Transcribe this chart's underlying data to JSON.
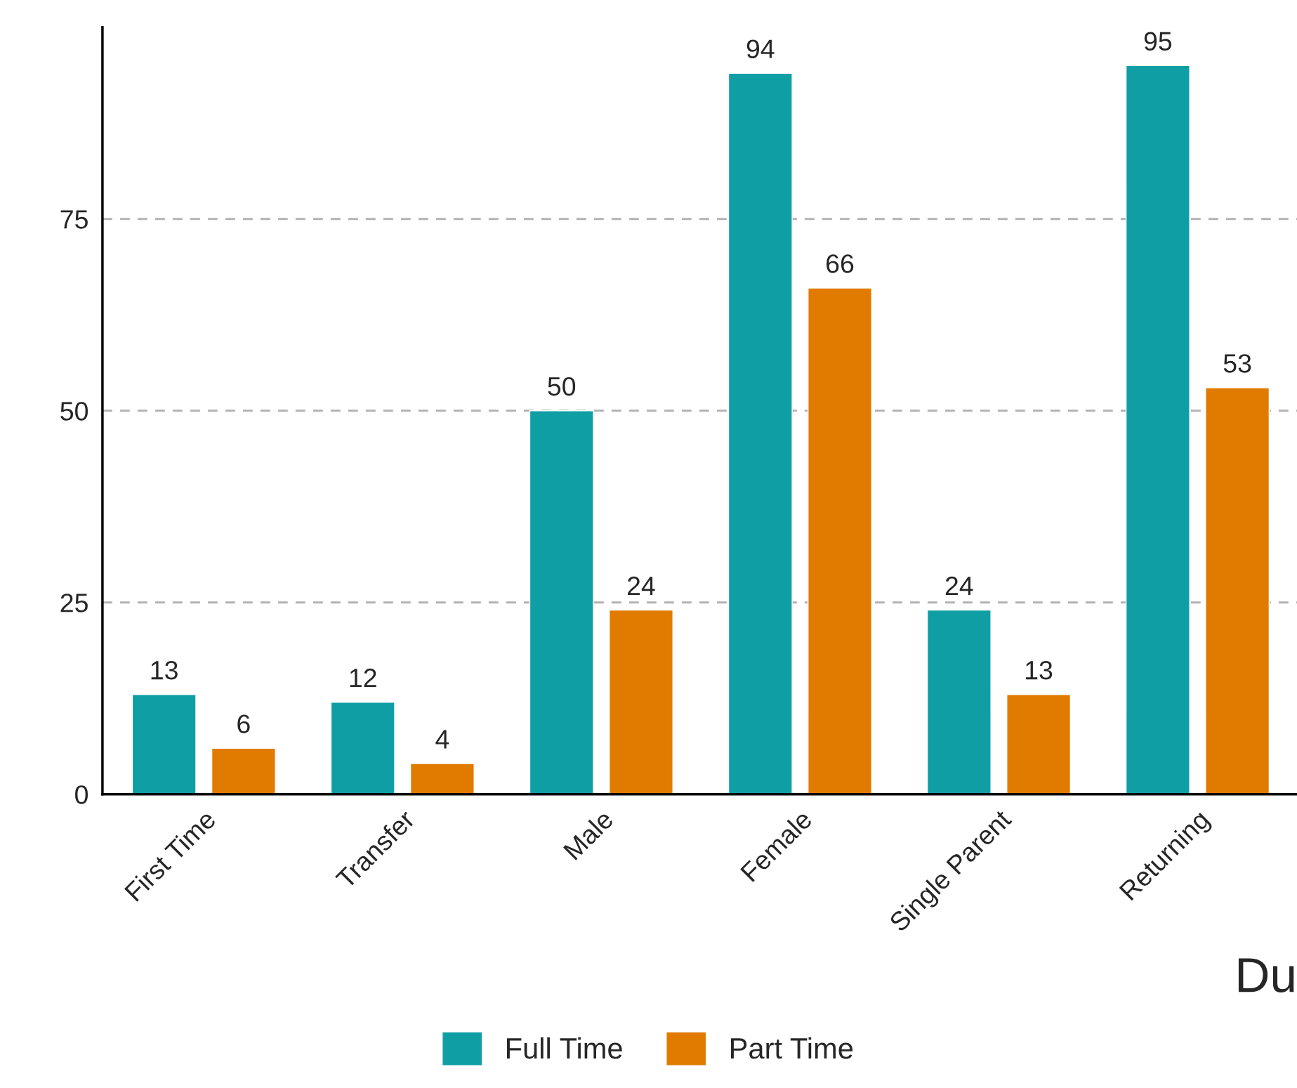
{
  "chart_data": {
    "type": "bar",
    "xlabel": "Du",
    "categories": [
      "First Time",
      "Transfer",
      "Male",
      "Female",
      "Single Parent",
      "Returning"
    ],
    "series": [
      {
        "name": "Full Time",
        "color": "#109ea5",
        "values": [
          13,
          12,
          50,
          94,
          24,
          95
        ]
      },
      {
        "name": "Part Time",
        "color": "#e07b00",
        "values": [
          6,
          4,
          24,
          66,
          13,
          53
        ]
      }
    ],
    "ylim": [
      0,
      100
    ],
    "yticks": [
      0,
      25,
      50,
      75
    ],
    "grid": "y",
    "legend": "bottom",
    "data_labels": true
  }
}
